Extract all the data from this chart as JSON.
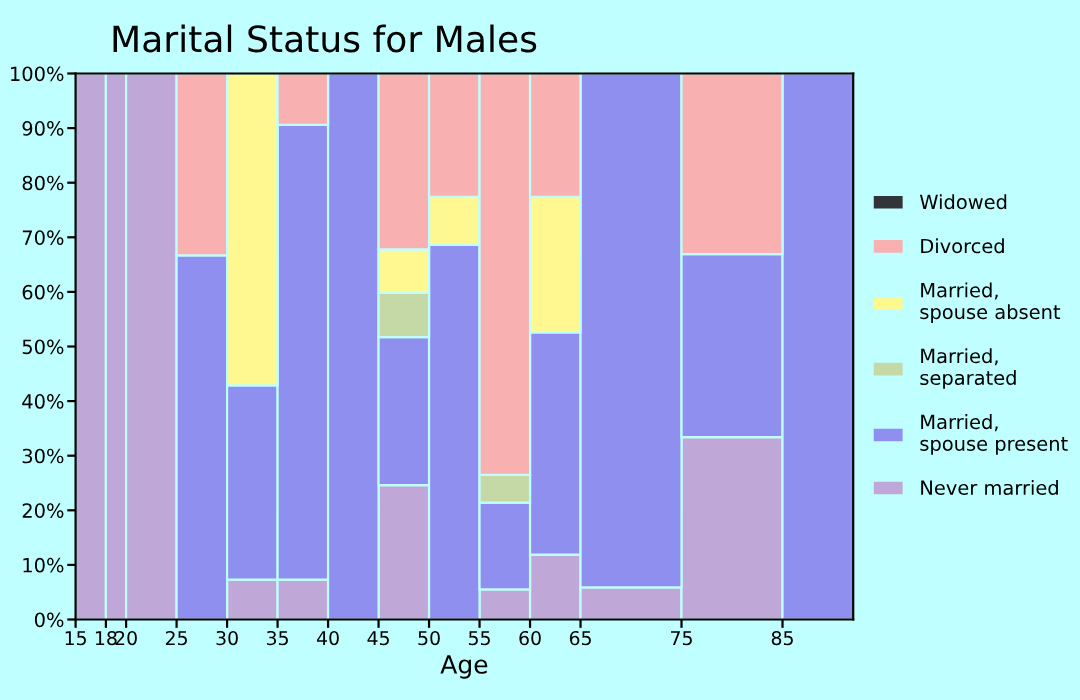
{
  "chart_data": {
    "type": "bar",
    "title": "Marital Status for Males",
    "xlabel": "Age",
    "stacked": true,
    "x": [
      16.5,
      19,
      22.5,
      27.5,
      32.5,
      37.5,
      42.5,
      47.5,
      52.5,
      57.5,
      62.5,
      70,
      80,
      88.5
    ],
    "series": [
      {
        "name": "Never married",
        "color": "#bfa8d8",
        "values": [
          100,
          100,
          100,
          0,
          7.3,
          7.3,
          0,
          24.6,
          0,
          5.5,
          11.9,
          5.9,
          33.4,
          0
        ]
      },
      {
        "name": "Married, spouse present",
        "color": "#8f8ff0",
        "values": [
          0,
          0,
          0,
          66.7,
          35.6,
          83.3,
          100,
          27.1,
          68.6,
          15.9,
          40.7,
          94.1,
          33.5,
          100
        ]
      },
      {
        "name": "Married, separated",
        "color": "#c4d9a6",
        "values": [
          0,
          0,
          0,
          0,
          0,
          0,
          0,
          8.1,
          0,
          5.1,
          0,
          0,
          0,
          0
        ]
      },
      {
        "name": "Married, spouse absent",
        "color": "#fff891",
        "values": [
          0,
          0,
          0,
          0,
          57.1,
          0,
          0,
          8.0,
          8.8,
          0,
          24.8,
          0,
          0,
          0
        ]
      },
      {
        "name": "Divorced",
        "color": "#f8b0b0",
        "values": [
          0,
          0,
          0,
          33.3,
          0,
          9.4,
          0,
          32.2,
          22.6,
          73.5,
          22.6,
          0,
          33.1,
          0
        ]
      },
      {
        "name": "Widowed",
        "color": "#33343a",
        "values": [
          0,
          0,
          0,
          0,
          0,
          0,
          0,
          0,
          0,
          0,
          0,
          0,
          0,
          0
        ]
      }
    ],
    "xlim": [
      15,
      92
    ],
    "ylim": [
      0,
      100
    ],
    "xticks": [
      15,
      18,
      20,
      25,
      30,
      35,
      40,
      45,
      50,
      55,
      60,
      65,
      75,
      85
    ],
    "yticks": [
      {
        "value": 0,
        "label": "0%"
      },
      {
        "value": 10,
        "label": "10%"
      },
      {
        "value": 20,
        "label": "20%"
      },
      {
        "value": 30,
        "label": "30%"
      },
      {
        "value": 40,
        "label": "40%"
      },
      {
        "value": 50,
        "label": "50%"
      },
      {
        "value": 60,
        "label": "60%"
      },
      {
        "value": 70,
        "label": "70%"
      },
      {
        "value": 80,
        "label": "80%"
      },
      {
        "value": 90,
        "label": "90%"
      },
      {
        "value": 100,
        "label": "100%"
      }
    ],
    "legend": "right",
    "grid": false
  }
}
